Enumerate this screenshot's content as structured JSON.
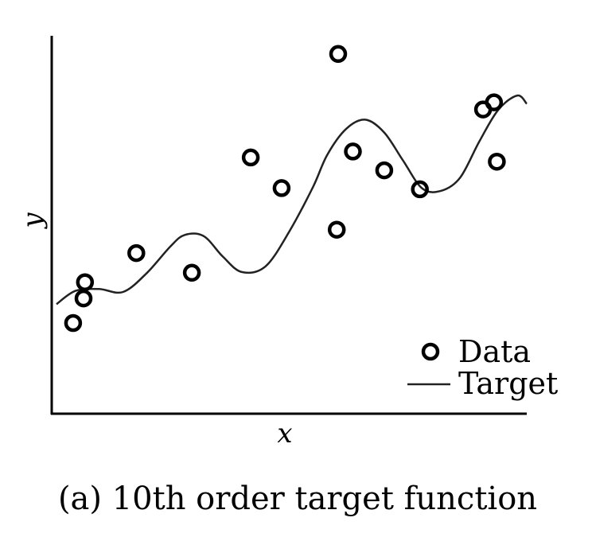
{
  "chart_data": {
    "type": "scatter",
    "title": "",
    "caption": "(a) 10th order target function",
    "xlabel": "x",
    "ylabel": "y",
    "xlim": [
      0,
      1
    ],
    "ylim": [
      0,
      1
    ],
    "ticks": "none",
    "grid": false,
    "legend": {
      "placement": "bottom-right",
      "entries": [
        "Data",
        "Target"
      ]
    },
    "series": [
      {
        "name": "Data",
        "kind": "scatter",
        "marker": "open-circle",
        "x": [
          0.045,
          0.067,
          0.07,
          0.178,
          0.295,
          0.419,
          0.484,
          0.6,
          0.603,
          0.634,
          0.7,
          0.775,
          0.908,
          0.931,
          0.937
        ],
        "y": [
          0.24,
          0.305,
          0.348,
          0.425,
          0.373,
          0.678,
          0.597,
          0.487,
          0.952,
          0.694,
          0.644,
          0.594,
          0.805,
          0.824,
          0.667
        ]
      },
      {
        "name": "Target",
        "kind": "line",
        "x": [
          0.01,
          0.05,
          0.1,
          0.15,
          0.2,
          0.25,
          0.28,
          0.32,
          0.36,
          0.4,
          0.45,
          0.5,
          0.55,
          0.58,
          0.62,
          0.66,
          0.7,
          0.74,
          0.78,
          0.82,
          0.86,
          0.9,
          0.94,
          0.98,
          1.0
        ],
        "y": [
          0.29,
          0.325,
          0.33,
          0.322,
          0.372,
          0.443,
          0.473,
          0.47,
          0.416,
          0.375,
          0.39,
          0.482,
          0.6,
          0.685,
          0.754,
          0.778,
          0.744,
          0.669,
          0.596,
          0.59,
          0.625,
          0.72,
          0.804,
          0.842,
          0.82
        ]
      }
    ]
  }
}
